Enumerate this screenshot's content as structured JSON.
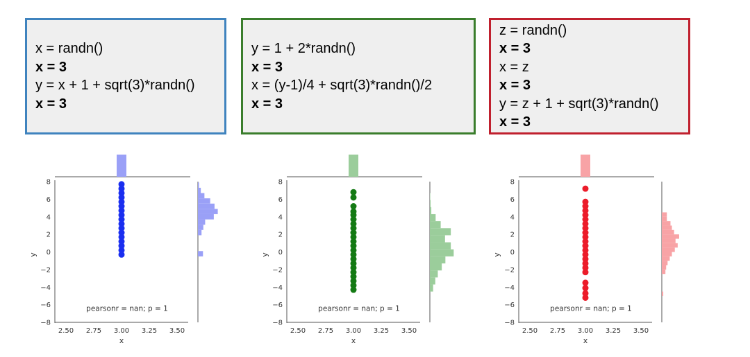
{
  "panels": [
    {
      "border_color": "#3f83be",
      "code": [
        {
          "text": "x = randn()",
          "bold": false
        },
        {
          "text": "x = 3",
          "bold": true
        },
        {
          "text": "y = x + 1 + sqrt(3)*randn()",
          "bold": false
        },
        {
          "text": "x = 3",
          "bold": true
        }
      ]
    },
    {
      "border_color": "#3a7d2c",
      "code": [
        {
          "text": "y = 1 + 2*randn()",
          "bold": false
        },
        {
          "text": "x = 3",
          "bold": true
        },
        {
          "text": "x = (y-1)/4 + sqrt(3)*randn()/2",
          "bold": false
        },
        {
          "text": "x = 3",
          "bold": true
        }
      ]
    },
    {
      "border_color": "#c0202e",
      "code": [
        {
          "text": "z = randn()",
          "bold": false
        },
        {
          "text": "x = 3",
          "bold": true
        },
        {
          "text": "x = z",
          "bold": false
        },
        {
          "text": "x = 3",
          "bold": true
        },
        {
          "text": "y = z + 1 + sqrt(3)*randn()",
          "bold": false
        },
        {
          "text": "x = 3",
          "bold": true
        }
      ]
    }
  ],
  "chart_data": [
    {
      "type": "scatter",
      "color": "#1a2ef0",
      "hist_color": "#9aa0f7",
      "xlabel": "x",
      "ylabel": "y",
      "xlim": [
        2.4,
        3.6
      ],
      "ylim": [
        -8,
        8
      ],
      "xticks": [
        "2.50",
        "2.75",
        "3.00",
        "3.25",
        "3.50"
      ],
      "yticks": [
        "8",
        "6",
        "4",
        "2",
        "0",
        "−2",
        "−4",
        "−6",
        "−8"
      ],
      "annotation": "pearsonr = nan; p = 1",
      "points": {
        "x": 3.0,
        "y": [
          -0.3,
          0.2,
          0.7,
          1.2,
          1.7,
          2.2,
          2.7,
          3.2,
          3.7,
          4.2,
          4.7,
          5.2,
          5.7,
          6.2,
          6.7,
          7.2,
          7.7
        ]
      },
      "y_hist": {
        "bin_start": -0.5,
        "bin_width": 0.6,
        "counts": [
          1.4,
          0,
          0,
          0,
          1,
          1.5,
          2,
          4.4,
          5.5,
          4.6,
          3.4,
          1.8,
          0.8,
          0.3
        ]
      },
      "x_hist": {
        "center": 3.0,
        "height": 1.0
      }
    },
    {
      "type": "scatter",
      "color": "#147a14",
      "hist_color": "#9bcd9b",
      "xlabel": "x",
      "ylabel": "y",
      "xlim": [
        2.4,
        3.6
      ],
      "ylim": [
        -8,
        8
      ],
      "xticks": [
        "2.50",
        "2.75",
        "3.00",
        "3.25",
        "3.50"
      ],
      "yticks": [
        "8",
        "6",
        "4",
        "2",
        "0",
        "−2",
        "−4",
        "−6",
        "−8"
      ],
      "annotation": "pearsonr = nan; p = 1",
      "points": {
        "x": 3.0,
        "y": [
          -4.3,
          -3.8,
          -3.3,
          -2.8,
          -2.3,
          -1.8,
          -1.3,
          -0.8,
          -0.3,
          0.2,
          0.7,
          1.2,
          1.7,
          2.2,
          2.7,
          3.2,
          3.7,
          4.2,
          4.6,
          5.2,
          6.2,
          6.8
        ]
      },
      "y_hist": {
        "bin_start": -4.5,
        "bin_width": 0.8,
        "counts": [
          0.9,
          1.5,
          2.2,
          3.3,
          4.3,
          6.6,
          5.8,
          4.2,
          5.8,
          3.0,
          1.6,
          0.4,
          0.2,
          0.1
        ]
      },
      "x_hist": {
        "center": 3.0,
        "height": 1.0
      }
    },
    {
      "type": "scatter",
      "color": "#ec1c2a",
      "hist_color": "#f8a3a6",
      "xlabel": "x",
      "ylabel": "y",
      "xlim": [
        2.4,
        3.6
      ],
      "ylim": [
        -8,
        8
      ],
      "xticks": [
        "2.50",
        "2.75",
        "3.00",
        "3.25",
        "3.50"
      ],
      "yticks": [
        "8",
        "6",
        "4",
        "2",
        "0",
        "−2",
        "−4",
        "−6",
        "−8"
      ],
      "annotation": "pearsonr = nan; p = 1",
      "points": {
        "x": 3.0,
        "y": [
          -5.2,
          -4.7,
          -4.1,
          -3.5,
          -2.3,
          -1.8,
          -1.3,
          -0.8,
          -0.3,
          0.2,
          0.7,
          1.2,
          1.7,
          2.2,
          2.7,
          3.2,
          3.7,
          4.2,
          4.7,
          5.2,
          5.7,
          7.2
        ]
      },
      "y_hist": {
        "bin_start": -5.0,
        "bin_width": 0.5,
        "counts": [
          0.4,
          0,
          0,
          0,
          0,
          1.0,
          1.2,
          1.6,
          2.2,
          2.8,
          3.6,
          4.4,
          3.8,
          4.8,
          3.4,
          2.8,
          2.4,
          1.4,
          1.4
        ]
      },
      "x_hist": {
        "center": 3.0,
        "height": 1.0
      }
    }
  ]
}
